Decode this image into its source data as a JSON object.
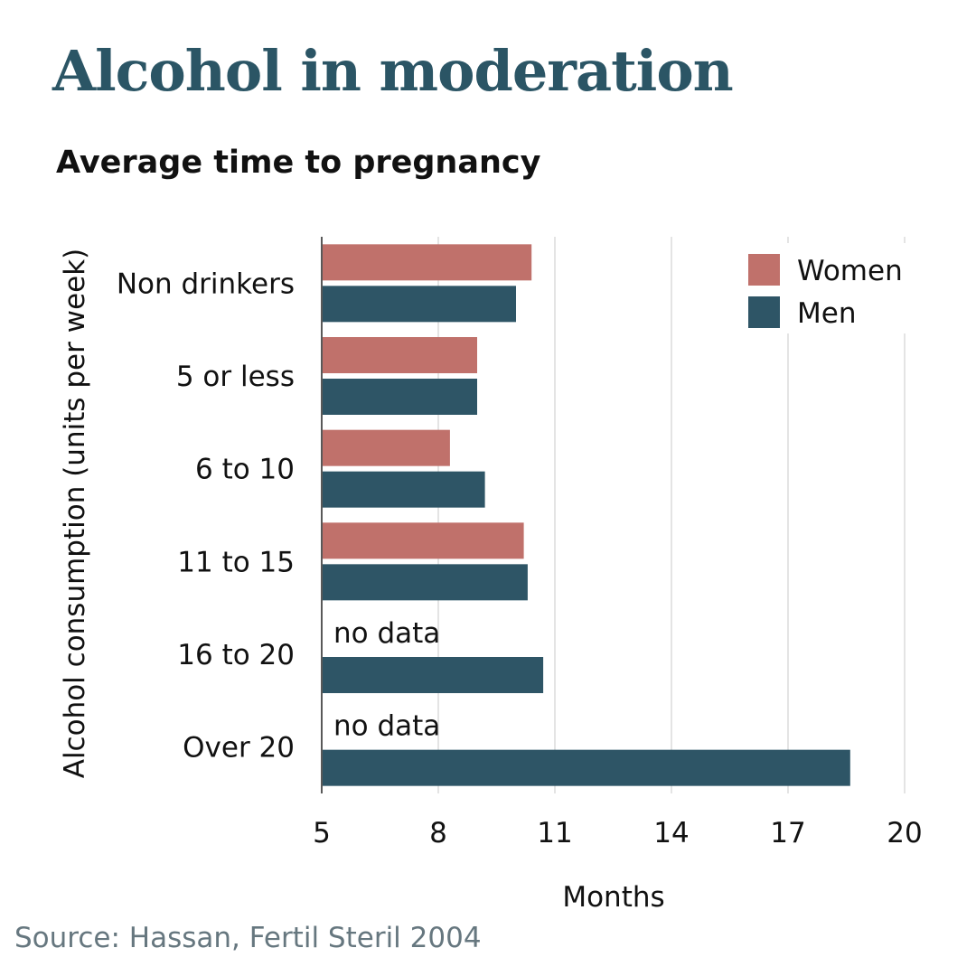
{
  "header": {
    "title": "Alcohol in moderation",
    "subtitle": "Average time to pregnancy"
  },
  "footer": {
    "source": "Source: Hassan, Fertil Steril 2004"
  },
  "chart_data": {
    "type": "bar",
    "orientation": "horizontal",
    "categories": [
      "Non drinkers",
      "5 or less",
      "6 to 10",
      "11 to 15",
      "16 to 20",
      "Over 20"
    ],
    "series": [
      {
        "name": "Women",
        "color": "#c0716b",
        "values": [
          10.4,
          9.0,
          8.3,
          10.2,
          null,
          null
        ]
      },
      {
        "name": "Men",
        "color": "#2e5566",
        "values": [
          10.0,
          9.0,
          9.2,
          10.3,
          10.7,
          18.6
        ]
      }
    ],
    "missing_label": "no data",
    "xlabel": "Months",
    "ylabel": "Alcohol consumption (units per week)",
    "xlim": [
      5,
      20
    ],
    "xticks": [
      5,
      8,
      11,
      14,
      17,
      20
    ],
    "grid": "vertical",
    "legend_position": "top-right"
  }
}
